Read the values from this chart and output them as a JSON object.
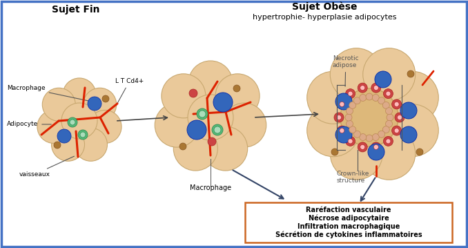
{
  "title_left": "Sujet Fin",
  "title_right": "Sujet Obèse",
  "subtitle_right": "hypertrophie- hyperplasie adipocytes",
  "border_color": "#4472C4",
  "adipocyte_color": "#EAC99A",
  "adipocyte_edge": "#C8A870",
  "vessel_color": "#DD2200",
  "macrophage_blue_color": "#3366BB",
  "macrophage_blue_edge": "#1133AA",
  "macrophage_green_color": "#55BB77",
  "macrophage_green_edge": "#338855",
  "macrophage_brown_color": "#AA7733",
  "macrophage_brown_edge": "#885522",
  "macrophage_red_color": "#CC4444",
  "macrophage_red_edge": "#AA2222",
  "necrotic_color": "#DDB87A",
  "crown_small_color": "#DDAA88",
  "crown_small_edge": "#BB8855",
  "crown_ring_color": "#CC5533",
  "crown_ring_edge": "#AA3311",
  "box_edge_color": "#CC6622",
  "box_text": "Raréfaction vasculaire\nNécrose adipocytaire\nInfiltration macrophagique\nSécrétion de cytokines inflammatoires",
  "label_macrophage": "Macrophage",
  "label_adipocyte": "Adipocyte",
  "label_vaisseaux": "vaisseaux",
  "label_lt": "L T Cd4+",
  "label_macrophage2": "Macrophage",
  "label_necrotic": "Necrotic\nadipose",
  "label_necrotic2": "Necrotic\nadipose",
  "label_crown": "Crown-like\nstructure",
  "arrow_color": "#444444",
  "bg_color": "#FFFFFF"
}
